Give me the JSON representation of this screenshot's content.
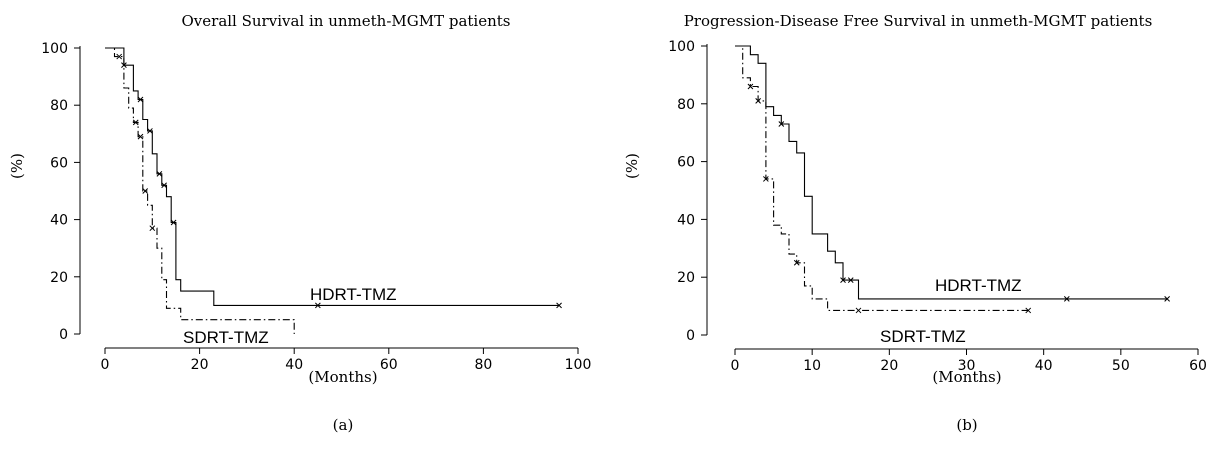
{
  "chart_data": [
    {
      "type": "line",
      "title": "Overall Survival in unmeth-MGMT patients",
      "xlabel": "(Months)",
      "ylabel": "(%)",
      "caption": "(a)",
      "xlim": [
        0,
        100
      ],
      "ylim": [
        0,
        100
      ],
      "xticks": [
        0,
        20,
        40,
        60,
        80,
        100
      ],
      "yticks": [
        0,
        20,
        40,
        60,
        80,
        100
      ],
      "grid": false,
      "series": [
        {
          "name": "HDRT-TMZ",
          "style": "solid",
          "x": [
            0,
            4,
            4,
            6,
            6,
            7,
            7,
            8,
            8,
            9,
            9,
            10,
            10,
            11,
            11,
            12,
            12,
            13,
            13,
            14,
            14,
            15,
            15,
            16,
            16,
            23,
            23,
            96
          ],
          "y": [
            100,
            100,
            94,
            94,
            85,
            85,
            82,
            82,
            75,
            75,
            71,
            71,
            63,
            63,
            56,
            56,
            52,
            52,
            48,
            48,
            39,
            39,
            19,
            19,
            15,
            15,
            10,
            10
          ],
          "censored_x": [
            4,
            7.5,
            9.5,
            11.5,
            12.5,
            14.5,
            45,
            96
          ],
          "censored_y": [
            94,
            82,
            71,
            56,
            52,
            39,
            10,
            10
          ]
        },
        {
          "name": "SDRT-TMZ",
          "style": "dashdot",
          "x": [
            0,
            2,
            2,
            4,
            4,
            5,
            5,
            6,
            6,
            7,
            7,
            8,
            8,
            9,
            9,
            10,
            10,
            11,
            11,
            12,
            12,
            13,
            13,
            16,
            16,
            40,
            40
          ],
          "y": [
            100,
            100,
            97,
            97,
            86,
            86,
            79,
            79,
            74,
            74,
            69,
            69,
            50,
            50,
            45,
            45,
            37,
            37,
            30,
            30,
            19,
            19,
            9,
            9,
            5,
            5,
            0
          ],
          "censored_x": [
            3,
            6.5,
            7.5,
            8.5,
            10
          ],
          "censored_y": [
            97,
            74,
            69,
            50,
            37
          ]
        }
      ]
    },
    {
      "type": "line",
      "title": "Progression-Disease Free Survival in unmeth-MGMT patients",
      "xlabel": "(Months)",
      "ylabel": "(%)",
      "caption": "(b)",
      "xlim": [
        0,
        60
      ],
      "ylim": [
        0,
        100
      ],
      "xticks": [
        0,
        10,
        20,
        30,
        40,
        50,
        60
      ],
      "yticks": [
        0,
        20,
        40,
        60,
        80,
        100
      ],
      "grid": false,
      "series": [
        {
          "name": "HDRT-TMZ",
          "style": "solid",
          "x": [
            0,
            2,
            2,
            3,
            3,
            4,
            4,
            5,
            5,
            6,
            6,
            7,
            7,
            8,
            8,
            9,
            9,
            10,
            10,
            11,
            11,
            12,
            12,
            13,
            13,
            14,
            14,
            16,
            16,
            56
          ],
          "y": [
            100,
            100,
            97,
            97,
            94,
            94,
            79,
            79,
            76,
            76,
            73,
            73,
            67,
            67,
            63,
            63,
            48,
            48,
            35,
            35,
            35,
            35,
            29,
            29,
            25,
            25,
            19,
            19,
            12.5,
            12.5
          ],
          "censored_x": [
            6,
            14,
            15,
            43,
            56
          ],
          "censored_y": [
            73,
            19,
            19,
            12.5,
            12.5
          ]
        },
        {
          "name": "SDRT-TMZ",
          "style": "dashdot",
          "x": [
            0,
            1,
            1,
            2,
            2,
            3,
            3,
            4,
            4,
            5,
            5,
            6,
            6,
            7,
            7,
            8,
            8,
            9,
            9,
            10,
            10,
            12,
            12,
            38
          ],
          "y": [
            100,
            100,
            89,
            89,
            86,
            86,
            81,
            81,
            54,
            54,
            38,
            38,
            35,
            35,
            28,
            28,
            25,
            25,
            17,
            17,
            12.5,
            12.5,
            8.5,
            8.5
          ],
          "censored_x": [
            2,
            3,
            4,
            8,
            16,
            38
          ],
          "censored_y": [
            86,
            81,
            54,
            25,
            8.5,
            8.5
          ]
        }
      ]
    }
  ]
}
